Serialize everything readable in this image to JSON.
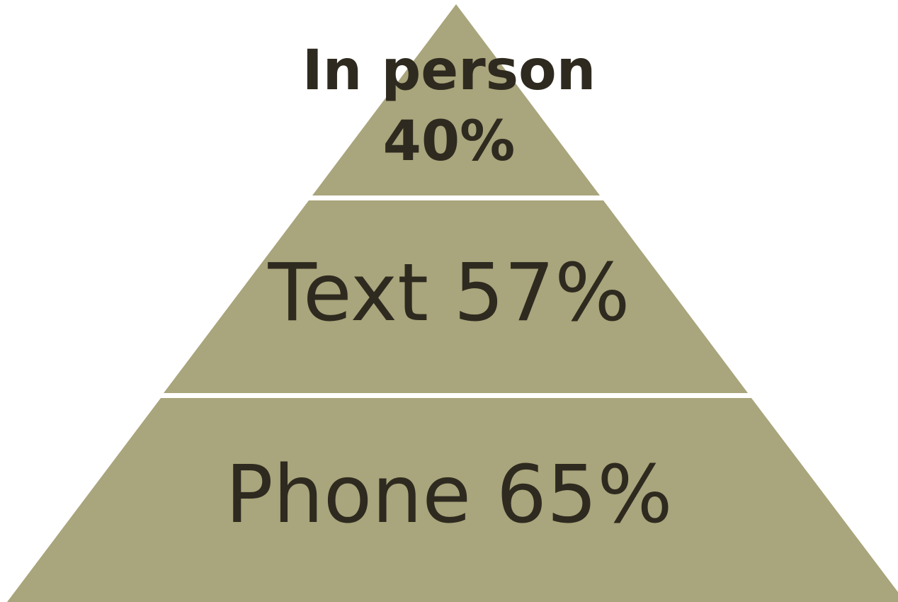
{
  "colors": {
    "tier_fill": "#a9a57c",
    "text": "#2e2a1f",
    "background": "#ffffff"
  },
  "tiers": [
    {
      "label": "In person",
      "value": "40%"
    },
    {
      "label": "Text 57%"
    },
    {
      "label": "Phone 65%"
    }
  ]
}
